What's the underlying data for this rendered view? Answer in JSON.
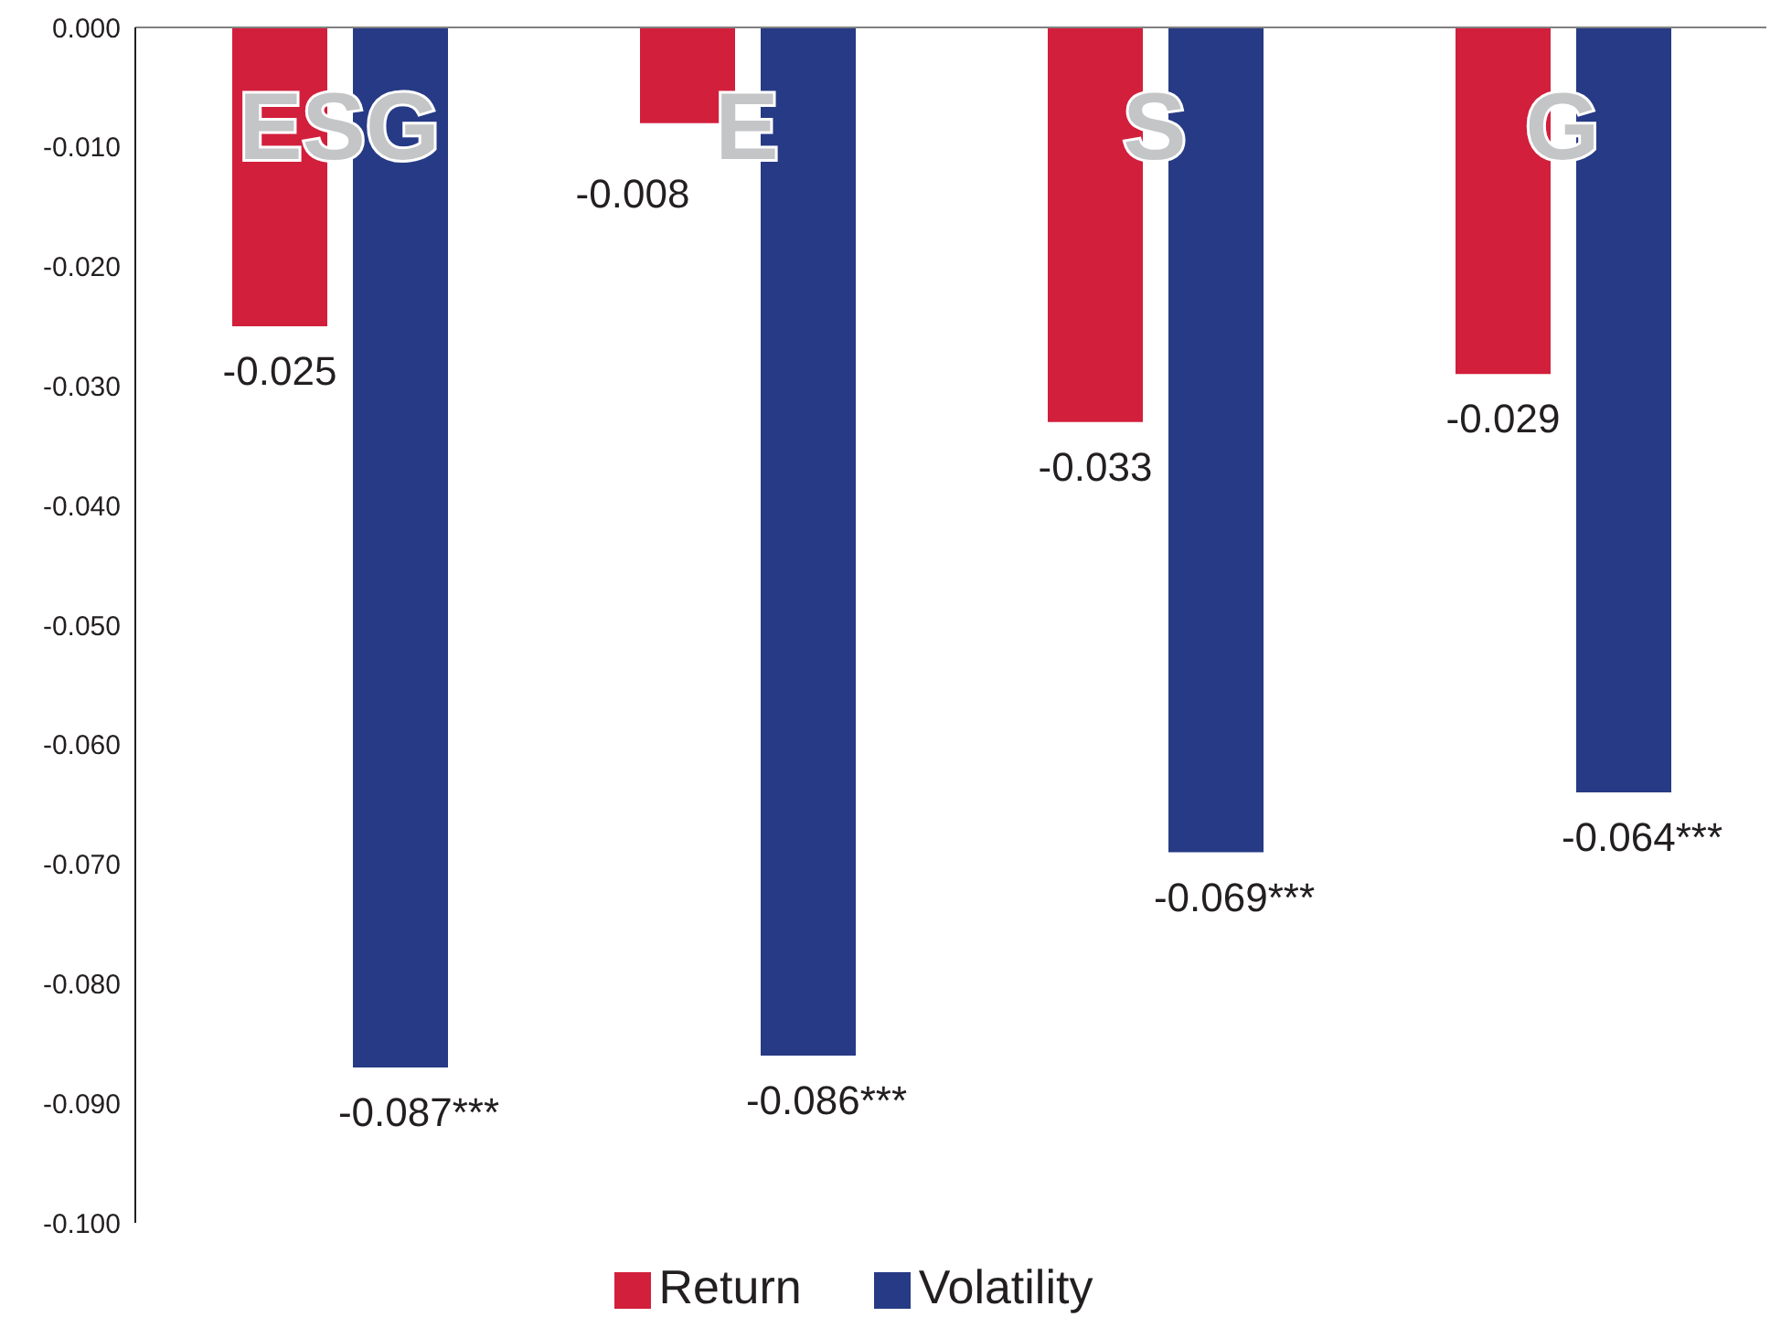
{
  "chart_data": {
    "type": "bar",
    "categories": [
      "ESG",
      "E",
      "S",
      "G"
    ],
    "series": [
      {
        "name": "Return",
        "color": "#d21f3c",
        "values": [
          -0.025,
          -0.008,
          -0.033,
          -0.029
        ],
        "value_labels": [
          "-0.025",
          "-0.008",
          "-0.033",
          "-0.029"
        ]
      },
      {
        "name": "Volatility",
        "color": "#273a85",
        "values": [
          -0.087,
          -0.086,
          -0.069,
          -0.064
        ],
        "value_labels": [
          "-0.087***",
          "-0.086***",
          "-0.069***",
          "-0.064***"
        ]
      }
    ],
    "ylim": [
      -0.1,
      0
    ],
    "yticks": [
      {
        "value": 0,
        "label": "0.000"
      },
      {
        "value": -0.01,
        "label": "-0.010"
      },
      {
        "value": -0.02,
        "label": "-0.020"
      },
      {
        "value": -0.03,
        "label": "-0.030"
      },
      {
        "value": -0.04,
        "label": "-0.040"
      },
      {
        "value": -0.05,
        "label": "-0.050"
      },
      {
        "value": -0.06,
        "label": "-0.060"
      },
      {
        "value": -0.07,
        "label": "-0.070"
      },
      {
        "value": -0.08,
        "label": "-0.080"
      },
      {
        "value": -0.09,
        "label": "-0.090"
      },
      {
        "value": -0.1,
        "label": "-0.100"
      }
    ],
    "grid": false,
    "legend": "bottom"
  }
}
